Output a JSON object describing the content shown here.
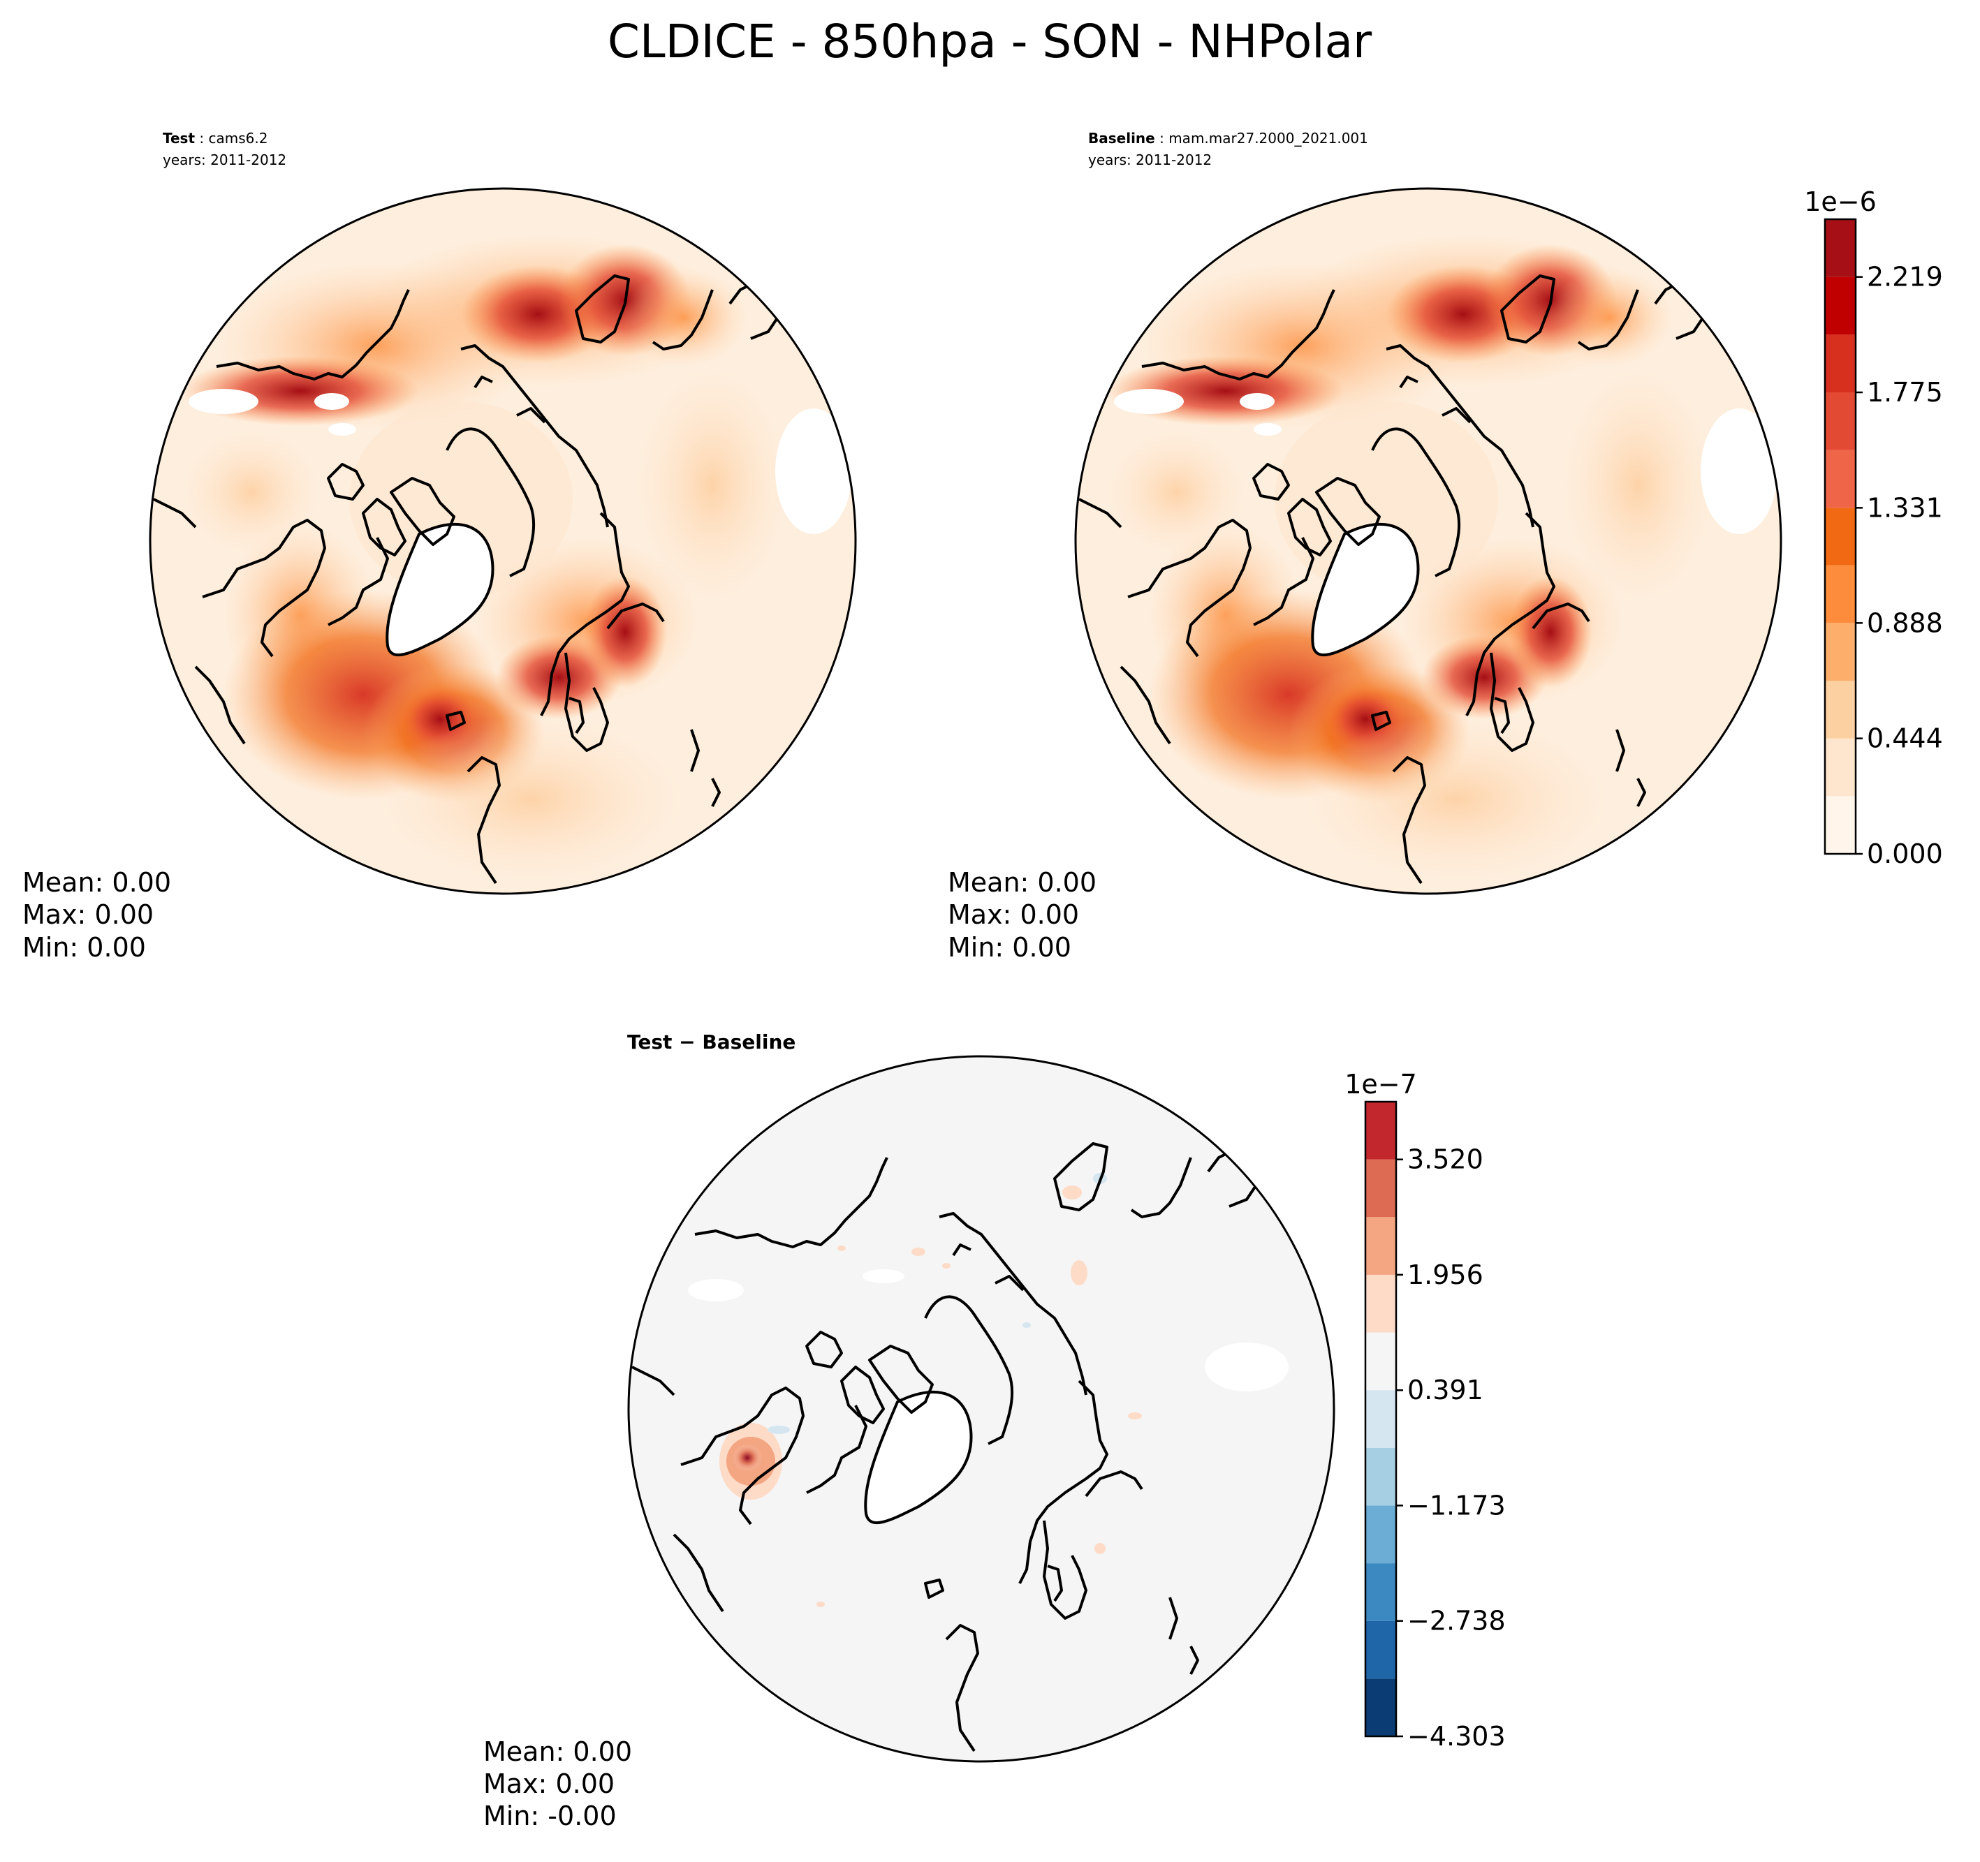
{
  "figure": {
    "title": "CLDICE - 850hpa - SON - NHPolar"
  },
  "chart_data": [
    {
      "type": "heatmap",
      "projection": "north-polar-stereographic",
      "panel": "test",
      "label_bold": "Test",
      "label_sep": ":",
      "label_case": "cams6.2",
      "years": "years: 2011-2012",
      "stats": {
        "mean": "Mean:  0.00",
        "max": "Max:  0.00",
        "min": "Min:  0.00"
      }
    },
    {
      "type": "heatmap",
      "projection": "north-polar-stereographic",
      "panel": "baseline",
      "label_bold": "Baseline",
      "label_sep": ":",
      "label_case": "mam.mar27.2000_2021.001",
      "years": "years: 2011-2012",
      "stats": {
        "mean": "Mean:  0.00",
        "max": "Max:  0.00",
        "min": "Min:  0.00"
      },
      "colorbar": {
        "exponent_label": "1e−6",
        "ticks": [
          "0.000",
          "0.444",
          "0.888",
          "1.331",
          "1.775",
          "2.219"
        ],
        "levels": [
          0,
          0.222,
          0.444,
          0.666,
          0.888,
          1.11,
          1.331,
          1.553,
          1.775,
          1.997,
          2.219,
          2.441
        ],
        "colors": [
          "#fff5eb",
          "#fee6ce",
          "#fdd0a2",
          "#fdae6b",
          "#fd8d3c",
          "#f16913",
          "#ef6548",
          "#e34a33",
          "#d7301f",
          "#c00000",
          "#a50f15",
          "#7f0000"
        ]
      }
    },
    {
      "type": "heatmap",
      "projection": "north-polar-stereographic",
      "panel": "difference",
      "label_bold": "Test − Baseline",
      "stats": {
        "mean": "Mean:  0.00",
        "max": "Max:  0.00",
        "min": "Min: -0.00"
      },
      "colorbar": {
        "exponent_label": "1e−7",
        "ticks": [
          "−4.303",
          "−2.738",
          "−1.173",
          "0.391",
          "1.956",
          "3.520"
        ],
        "levels": [
          -4.303,
          -3.52,
          -2.738,
          -1.956,
          -1.173,
          -0.391,
          0.391,
          1.173,
          1.956,
          2.738,
          3.52,
          4.303
        ],
        "colors": [
          "#0b3c73",
          "#1f66a8",
          "#3b89c0",
          "#6badd4",
          "#a7cfe4",
          "#d5e6f1",
          "#f5f5f5",
          "#fddbc7",
          "#f4a582",
          "#dd6b53",
          "#c1272d",
          "#8b0a24"
        ]
      }
    }
  ]
}
